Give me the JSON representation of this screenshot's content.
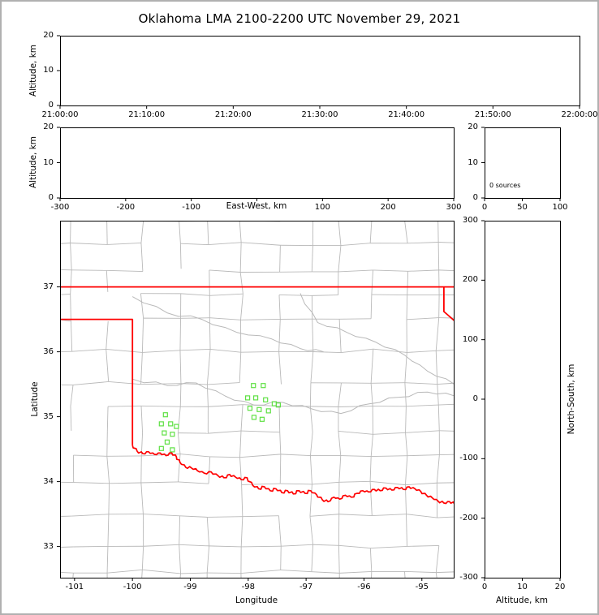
{
  "title": "Oklahoma LMA 2100-2200 UTC November 29, 2021",
  "colors": {
    "frame": "#b0b0b0",
    "axis": "#000000",
    "county_line": "#b9b9b9",
    "state_border": "#ff0000",
    "source_marker": "#5fe044"
  },
  "chart_data": [
    {
      "id": "time_height",
      "type": "scatter",
      "xlabel": "",
      "ylabel": "Altitude, km",
      "x_tick_labels": [
        "21:00:00",
        "21:10:00",
        "21:20:00",
        "21:30:00",
        "21:40:00",
        "21:50:00",
        "22:00:00"
      ],
      "ylim": [
        0,
        20
      ],
      "yticks": [
        0,
        10,
        20
      ],
      "points": []
    },
    {
      "id": "eastwest_height",
      "type": "scatter",
      "xlabel": "East-West, km",
      "ylabel": "Altitude, km",
      "xlim": [
        -300,
        300
      ],
      "xticks": [
        -300,
        -200,
        -100,
        0,
        100,
        200,
        300
      ],
      "x_tick_labels": [
        "-300",
        "-200",
        "-100",
        "",
        "100",
        "200",
        "300"
      ],
      "ylim": [
        0,
        20
      ],
      "yticks": [
        0,
        10,
        20
      ],
      "points": []
    },
    {
      "id": "altitude_histogram",
      "type": "bar",
      "annotation": "0 sources",
      "xlim": [
        0,
        100
      ],
      "xticks": [
        0,
        50,
        100
      ],
      "ylim": [
        0,
        20
      ],
      "yticks": [
        0,
        10,
        20
      ],
      "values": []
    },
    {
      "id": "plan_view_map",
      "type": "scatter",
      "xlabel": "Longitude",
      "ylabel": "Latitude",
      "xlim": [
        -101.25,
        -94.45
      ],
      "ylim": [
        32.52,
        38.02
      ],
      "xticks": [
        -101,
        -100,
        -99,
        -98,
        -97,
        -96,
        -95
      ],
      "yticks": [
        33,
        34,
        35,
        36,
        37
      ],
      "marker": "open-square",
      "points": [
        [
          -99.43,
          35.03
        ],
        [
          -99.5,
          34.89
        ],
        [
          -99.34,
          34.89
        ],
        [
          -99.24,
          34.85
        ],
        [
          -99.45,
          34.75
        ],
        [
          -99.31,
          34.73
        ],
        [
          -99.4,
          34.61
        ],
        [
          -99.5,
          34.51
        ],
        [
          -99.31,
          34.49
        ],
        [
          -97.91,
          35.48
        ],
        [
          -97.74,
          35.48
        ],
        [
          -98.01,
          35.29
        ],
        [
          -97.87,
          35.29
        ],
        [
          -97.7,
          35.26
        ],
        [
          -97.55,
          35.2
        ],
        [
          -97.97,
          35.13
        ],
        [
          -97.81,
          35.11
        ],
        [
          -97.65,
          35.09
        ],
        [
          -97.48,
          35.18
        ],
        [
          -97.9,
          34.99
        ],
        [
          -97.76,
          34.96
        ]
      ]
    },
    {
      "id": "northsouth_height",
      "type": "scatter",
      "xlabel": "Altitude, km",
      "ylabel": "North-South, km",
      "xlim": [
        0,
        20
      ],
      "xticks": [
        0,
        10,
        20
      ],
      "ylim": [
        -300,
        300
      ],
      "yticks": [
        -300,
        -200,
        -100,
        0,
        100,
        200,
        300
      ],
      "points": []
    }
  ],
  "map_layers": {
    "state_border_segments": [
      [
        [
          -101.25,
          37.0
        ],
        [
          -94.44,
          37.0
        ]
      ],
      [
        [
          -101.25,
          36.5
        ],
        [
          -100.0,
          36.5
        ],
        [
          -100.0,
          34.56
        ]
      ],
      [
        [
          -94.62,
          37.0
        ],
        [
          -94.62,
          36.62
        ],
        [
          -94.44,
          36.48
        ]
      ]
    ],
    "red_river": [
      [
        -100.0,
        34.56
      ],
      [
        -99.92,
        34.47
      ],
      [
        -99.82,
        34.43
      ],
      [
        -99.72,
        34.46
      ],
      [
        -99.62,
        34.42
      ],
      [
        -99.52,
        34.44
      ],
      [
        -99.42,
        34.4
      ],
      [
        -99.32,
        34.44
      ],
      [
        -99.24,
        34.38
      ],
      [
        -99.18,
        34.3
      ],
      [
        -99.08,
        34.22
      ],
      [
        -98.98,
        34.21
      ],
      [
        -98.88,
        34.17
      ],
      [
        -98.76,
        34.13
      ],
      [
        -98.64,
        34.15
      ],
      [
        -98.52,
        34.09
      ],
      [
        -98.42,
        34.06
      ],
      [
        -98.32,
        34.11
      ],
      [
        -98.22,
        34.07
      ],
      [
        -98.12,
        34.03
      ],
      [
        -98.02,
        34.06
      ],
      [
        -97.92,
        33.94
      ],
      [
        -97.82,
        33.89
      ],
      [
        -97.72,
        33.92
      ],
      [
        -97.62,
        33.86
      ],
      [
        -97.52,
        33.89
      ],
      [
        -97.42,
        33.83
      ],
      [
        -97.32,
        33.86
      ],
      [
        -97.22,
        33.81
      ],
      [
        -97.12,
        33.86
      ],
      [
        -97.02,
        33.82
      ],
      [
        -96.92,
        33.86
      ],
      [
        -96.82,
        33.8
      ],
      [
        -96.72,
        33.72
      ],
      [
        -96.62,
        33.69
      ],
      [
        -96.52,
        33.76
      ],
      [
        -96.42,
        33.73
      ],
      [
        -96.32,
        33.79
      ],
      [
        -96.22,
        33.76
      ],
      [
        -96.12,
        33.82
      ],
      [
        -96.02,
        33.86
      ],
      [
        -95.92,
        33.84
      ],
      [
        -95.82,
        33.88
      ],
      [
        -95.72,
        33.86
      ],
      [
        -95.62,
        33.9
      ],
      [
        -95.52,
        33.87
      ],
      [
        -95.42,
        33.91
      ],
      [
        -95.32,
        33.88
      ],
      [
        -95.22,
        33.92
      ],
      [
        -95.12,
        33.89
      ],
      [
        -95.02,
        33.85
      ],
      [
        -94.92,
        33.79
      ],
      [
        -94.82,
        33.75
      ],
      [
        -94.72,
        33.7
      ],
      [
        -94.62,
        33.67
      ],
      [
        -94.52,
        33.69
      ],
      [
        -94.44,
        33.66
      ]
    ],
    "gray_rivers": [
      [
        [
          -100.0,
          35.58
        ],
        [
          -99.4,
          35.48
        ],
        [
          -98.9,
          35.52
        ],
        [
          -98.4,
          35.32
        ],
        [
          -97.9,
          35.18
        ],
        [
          -97.4,
          35.22
        ],
        [
          -96.9,
          35.12
        ],
        [
          -96.4,
          35.05
        ],
        [
          -95.9,
          35.2
        ],
        [
          -95.4,
          35.3
        ],
        [
          -94.9,
          35.38
        ],
        [
          -94.44,
          35.32
        ]
      ],
      [
        [
          -97.1,
          36.9
        ],
        [
          -96.8,
          36.45
        ],
        [
          -96.3,
          36.3
        ],
        [
          -95.8,
          36.15
        ],
        [
          -95.3,
          35.95
        ],
        [
          -94.9,
          35.7
        ],
        [
          -94.44,
          35.5
        ]
      ],
      [
        [
          -100.0,
          36.85
        ],
        [
          -99.4,
          36.6
        ],
        [
          -98.8,
          36.5
        ],
        [
          -98.2,
          36.3
        ],
        [
          -97.6,
          36.2
        ],
        [
          -97.1,
          36.05
        ],
        [
          -96.7,
          36.0
        ]
      ]
    ]
  }
}
